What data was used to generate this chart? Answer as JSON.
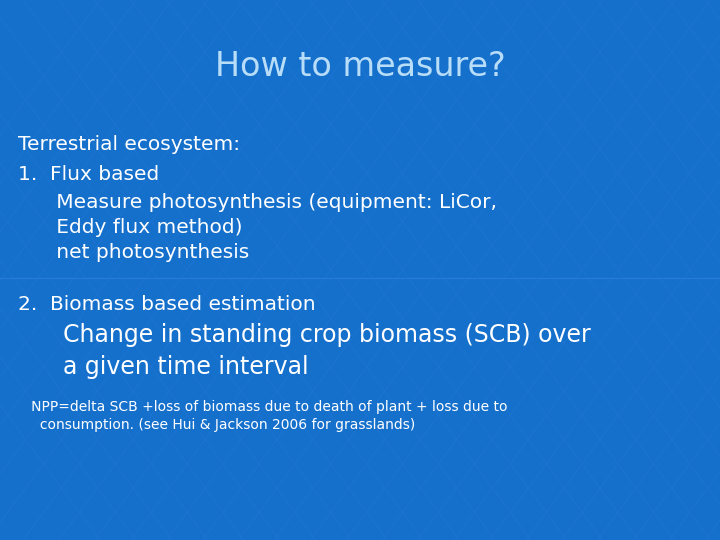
{
  "title": "How to measure?",
  "bg_color": "#1570cc",
  "title_color": "#b8ddf8",
  "text_color": "#ffffff",
  "title_fontsize": 24,
  "body_fontsize": 14.5,
  "indent_fontsize": 14.5,
  "large_indent_fontsize": 17,
  "small_fontsize": 10,
  "line1": "Terrestrial ecosystem:",
  "line2": "1.  Flux based",
  "line3": "      Measure photosynthesis (equipment: LiCor,",
  "line4": "      Eddy flux method)",
  "line5": "      net photosynthesis",
  "line6": "2.  Biomass based estimation",
  "line7": "      Change in standing crop biomass (SCB) over",
  "line8": "      a given time interval",
  "line9": "   NPP=delta SCB +loss of biomass due to death of plant + loss due to",
  "line10": "     consumption. (see Hui & Jackson 2006 for grasslands)"
}
